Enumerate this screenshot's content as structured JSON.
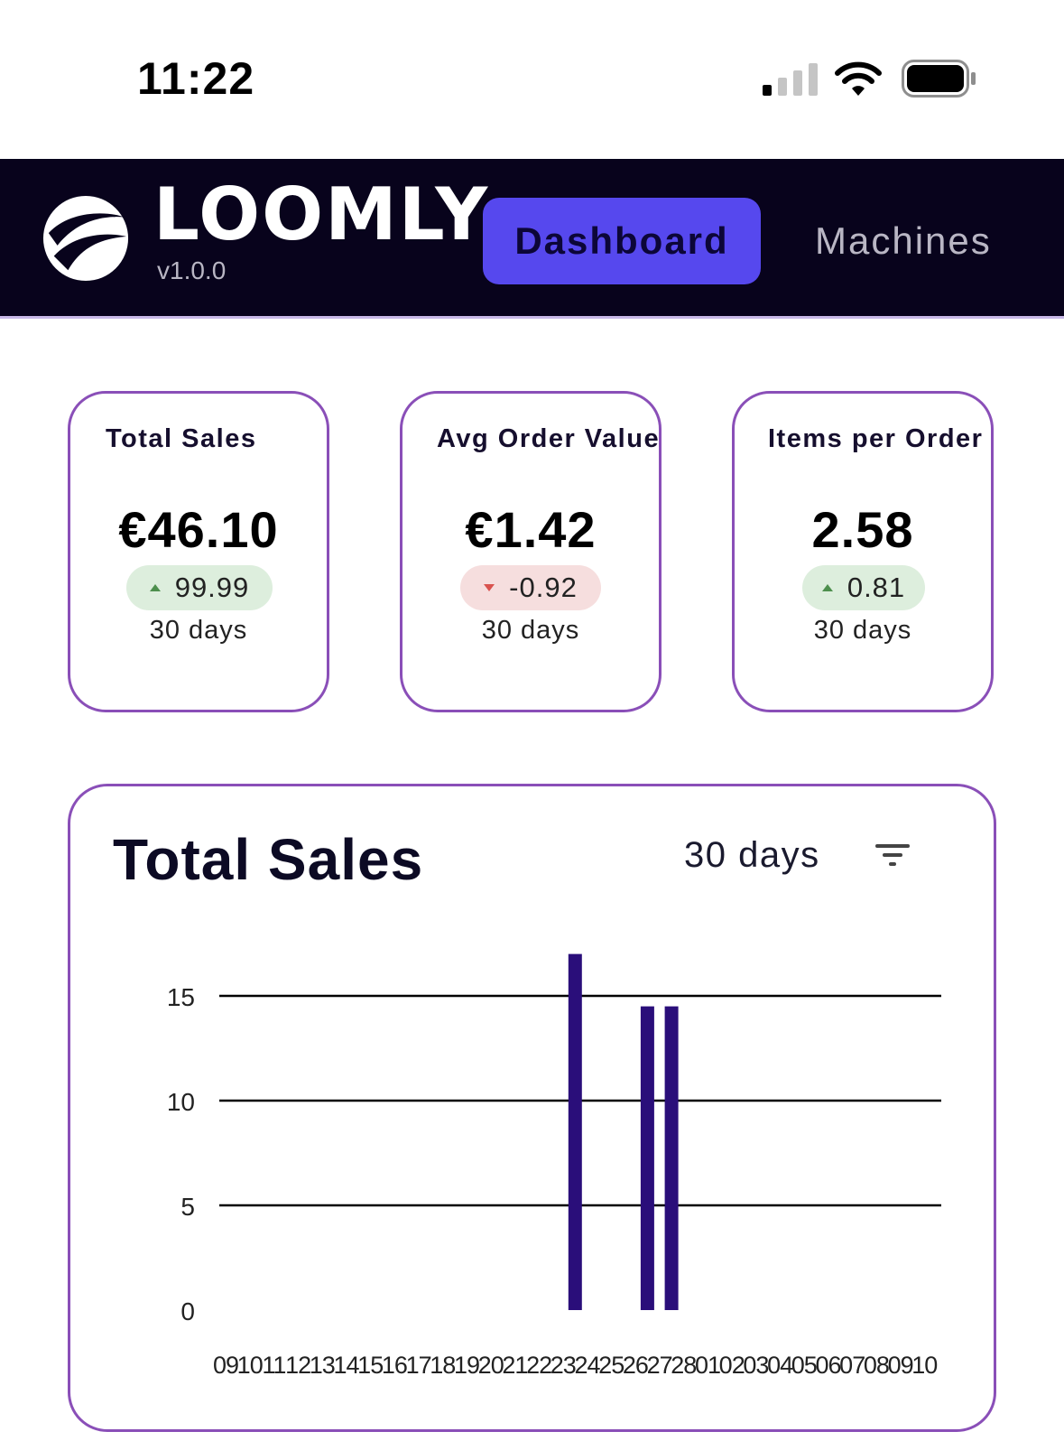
{
  "status_bar": {
    "time": "11:22",
    "icons": [
      "cellular-signal-icon",
      "wifi-icon",
      "battery-icon"
    ]
  },
  "navbar": {
    "brand": "LOOMLY",
    "version": "v1.0.0",
    "tabs": [
      {
        "label": "Dashboard",
        "active": true
      },
      {
        "label": "Machines",
        "active": false
      }
    ],
    "colors": {
      "background": "#08031c",
      "active_tab": "#5648ee"
    }
  },
  "kpis": [
    {
      "title": "Total Sales",
      "value": "€46.10",
      "delta": "99.99",
      "direction": "up",
      "period": "30 days"
    },
    {
      "title": "Avg Order Value",
      "value": "€1.42",
      "delta": "-0.92",
      "direction": "down",
      "period": "30 days"
    },
    {
      "title": "Items per Order",
      "value": "2.58",
      "delta": "0.81",
      "direction": "up",
      "period": "30 days"
    }
  ],
  "chart_card": {
    "title": "Total Sales",
    "period": "30 days",
    "filter_icon": "filter-icon"
  },
  "chart_data": {
    "type": "bar",
    "categories": [
      "09",
      "10",
      "11",
      "12",
      "13",
      "14",
      "15",
      "16",
      "17",
      "18",
      "19",
      "20",
      "21",
      "22",
      "23",
      "24",
      "25",
      "26",
      "27",
      "28",
      "01",
      "02",
      "03",
      "04",
      "05",
      "06",
      "07",
      "08",
      "09",
      "10"
    ],
    "values": [
      0,
      0,
      0,
      0,
      0,
      0,
      0,
      0,
      0,
      0,
      0,
      0,
      0,
      0,
      17,
      0,
      0,
      14.5,
      14.5,
      0,
      0,
      0,
      0,
      0,
      0,
      0,
      0,
      0,
      0,
      0
    ],
    "yticks": [
      0,
      5,
      10,
      15
    ],
    "ylim": [
      0,
      17
    ],
    "grid": true,
    "bar_color": "#2a0e7a",
    "xlabel": "",
    "ylabel": "",
    "title": ""
  }
}
